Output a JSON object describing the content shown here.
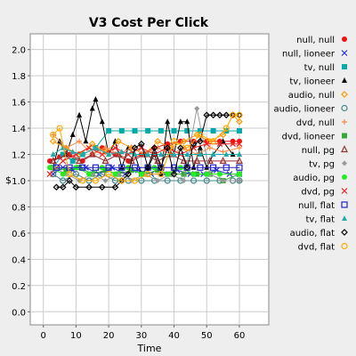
{
  "chart_data": {
    "type": "line",
    "title": "V3 Cost Per Click",
    "xlabel": "Time",
    "ylabel": "$",
    "xlim": [
      -4,
      69
    ],
    "ylim": [
      -0.1,
      2.12
    ],
    "x_ticks": [
      0,
      10,
      20,
      30,
      40,
      50,
      60
    ],
    "y_ticks": [
      0.0,
      0.2,
      0.4,
      0.6,
      0.8,
      1.0,
      1.2,
      1.4,
      1.6,
      1.8,
      2.0
    ],
    "x_tick_labels": [
      "0",
      "10",
      "20",
      "30",
      "40",
      "50",
      "60"
    ],
    "y_tick_labels": [
      "0.0",
      "0.2",
      "0.4",
      "0.6",
      "0.8",
      "1.0",
      "1.2",
      "1.4",
      "1.6",
      "1.8",
      "2.0"
    ],
    "grid": true,
    "legend_position": "right",
    "series": [
      {
        "name": "null, null",
        "color": "#ee1111",
        "marker": "dot",
        "values": [
          [
            2,
            1.15
          ],
          [
            5,
            1.18
          ],
          [
            8,
            1.2
          ],
          [
            12,
            1.15
          ],
          [
            15,
            1.2
          ],
          [
            18,
            1.25
          ],
          [
            22,
            1.2
          ],
          [
            26,
            1.15
          ],
          [
            30,
            1.2
          ],
          [
            34,
            1.25
          ],
          [
            38,
            1.28
          ],
          [
            42,
            1.3
          ],
          [
            46,
            1.3
          ],
          [
            50,
            1.3
          ],
          [
            54,
            1.3
          ],
          [
            58,
            1.3
          ],
          [
            60,
            1.3
          ]
        ]
      },
      {
        "name": "null, lioneer",
        "color": "#2233cc",
        "marker": "x",
        "values": [
          [
            3,
            1.05
          ],
          [
            6,
            1.1
          ],
          [
            9,
            1.08
          ],
          [
            13,
            1.1
          ],
          [
            17,
            1.05
          ],
          [
            21,
            1.1
          ],
          [
            25,
            1.05
          ],
          [
            29,
            1.08
          ],
          [
            33,
            1.05
          ],
          [
            37,
            1.05
          ],
          [
            41,
            1.08
          ],
          [
            45,
            1.05
          ],
          [
            49,
            1.05
          ],
          [
            53,
            1.08
          ],
          [
            57,
            1.05
          ],
          [
            60,
            1.05
          ]
        ]
      },
      {
        "name": "tv, null",
        "color": "#00aaaa",
        "marker": "square",
        "values": [
          [
            3,
            1.1
          ],
          [
            6,
            1.2
          ],
          [
            9,
            1.15
          ],
          [
            12,
            1.2
          ],
          [
            16,
            1.25
          ],
          [
            20,
            1.38
          ],
          [
            24,
            1.38
          ],
          [
            28,
            1.38
          ],
          [
            32,
            1.38
          ],
          [
            36,
            1.38
          ],
          [
            40,
            1.38
          ],
          [
            44,
            1.38
          ],
          [
            48,
            1.38
          ],
          [
            52,
            1.38
          ],
          [
            56,
            1.38
          ],
          [
            60,
            1.38
          ]
        ]
      },
      {
        "name": "tv, lioneer",
        "color": "#000000",
        "marker": "triangle",
        "values": [
          [
            3,
            1.1
          ],
          [
            5,
            1.3
          ],
          [
            7,
            1.2
          ],
          [
            9,
            1.35
          ],
          [
            11,
            1.5
          ],
          [
            13,
            1.3
          ],
          [
            15,
            1.55
          ],
          [
            16,
            1.62
          ],
          [
            18,
            1.45
          ],
          [
            20,
            1.2
          ],
          [
            22,
            1.3
          ],
          [
            24,
            1.1
          ],
          [
            26,
            1.25
          ],
          [
            28,
            1.2
          ],
          [
            30,
            1.05
          ],
          [
            32,
            1.1
          ],
          [
            34,
            1.2
          ],
          [
            36,
            1.05
          ],
          [
            38,
            1.45
          ],
          [
            40,
            1.2
          ],
          [
            42,
            1.45
          ],
          [
            44,
            1.45
          ],
          [
            46,
            1.1
          ],
          [
            48,
            1.25
          ],
          [
            50,
            1.1
          ],
          [
            52,
            1.2
          ],
          [
            55,
            1.3
          ],
          [
            58,
            1.2
          ],
          [
            60,
            1.2
          ]
        ]
      },
      {
        "name": "audio, null",
        "color": "#ff9900",
        "marker": "diamond-open",
        "values": [
          [
            3,
            1.3
          ],
          [
            7,
            1.25
          ],
          [
            11,
            1.2
          ],
          [
            15,
            1.28
          ],
          [
            19,
            1.22
          ],
          [
            23,
            1.3
          ],
          [
            27,
            1.25
          ],
          [
            31,
            1.2
          ],
          [
            35,
            1.3
          ],
          [
            39,
            1.25
          ],
          [
            43,
            1.3
          ],
          [
            47,
            1.35
          ],
          [
            51,
            1.3
          ],
          [
            55,
            1.35
          ],
          [
            58,
            1.5
          ],
          [
            60,
            1.45
          ]
        ]
      },
      {
        "name": "audio, lioneer",
        "color": "#448888",
        "marker": "circle-open",
        "values": [
          [
            3,
            1.05
          ],
          [
            6,
            1.0
          ],
          [
            10,
            1.05
          ],
          [
            14,
            1.0
          ],
          [
            18,
            1.05
          ],
          [
            22,
            1.0
          ],
          [
            26,
            1.0
          ],
          [
            30,
            1.0
          ],
          [
            34,
            1.0
          ],
          [
            38,
            1.0
          ],
          [
            42,
            1.0
          ],
          [
            46,
            1.0
          ],
          [
            50,
            1.0
          ],
          [
            54,
            1.0
          ],
          [
            58,
            1.0
          ],
          [
            60,
            1.0
          ]
        ]
      },
      {
        "name": "dvd, null",
        "color": "#ff8844",
        "marker": "plus",
        "values": [
          [
            3,
            1.35
          ],
          [
            7,
            1.25
          ],
          [
            11,
            1.3
          ],
          [
            15,
            1.2
          ],
          [
            19,
            1.25
          ],
          [
            23,
            1.2
          ],
          [
            27,
            1.25
          ],
          [
            31,
            1.2
          ],
          [
            35,
            1.25
          ],
          [
            39,
            1.2
          ],
          [
            43,
            1.25
          ],
          [
            47,
            1.2
          ],
          [
            51,
            1.25
          ],
          [
            55,
            1.22
          ],
          [
            60,
            1.25
          ]
        ]
      },
      {
        "name": "dvd, lioneer",
        "color": "#33aa33",
        "marker": "square-filled",
        "values": [
          [
            3,
            1.1
          ],
          [
            7,
            1.08
          ],
          [
            11,
            1.1
          ],
          [
            15,
            1.05
          ],
          [
            19,
            1.08
          ],
          [
            23,
            1.05
          ],
          [
            27,
            1.08
          ],
          [
            31,
            1.05
          ],
          [
            35,
            1.08
          ],
          [
            39,
            1.05
          ],
          [
            43,
            1.05
          ],
          [
            47,
            1.05
          ],
          [
            51,
            1.05
          ],
          [
            55,
            1.0
          ],
          [
            60,
            1.05
          ]
        ]
      },
      {
        "name": "null, pg",
        "color": "#993333",
        "marker": "triangle-open",
        "values": [
          [
            3,
            1.15
          ],
          [
            7,
            1.2
          ],
          [
            11,
            1.15
          ],
          [
            15,
            1.2
          ],
          [
            19,
            1.15
          ],
          [
            23,
            1.2
          ],
          [
            27,
            1.15
          ],
          [
            31,
            1.2
          ],
          [
            35,
            1.15
          ],
          [
            39,
            1.2
          ],
          [
            43,
            1.15
          ],
          [
            47,
            1.15
          ],
          [
            51,
            1.15
          ],
          [
            55,
            1.15
          ],
          [
            60,
            1.15
          ]
        ]
      },
      {
        "name": "tv, pg",
        "color": "#999999",
        "marker": "diamond",
        "values": [
          [
            3,
            1.1
          ],
          [
            7,
            1.05
          ],
          [
            11,
            1.0
          ],
          [
            15,
            1.05
          ],
          [
            19,
            1.0
          ],
          [
            23,
            1.05
          ],
          [
            27,
            1.0
          ],
          [
            31,
            1.05
          ],
          [
            35,
            1.0
          ],
          [
            39,
            1.05
          ],
          [
            43,
            1.0
          ],
          [
            47,
            1.55
          ],
          [
            51,
            1.05
          ],
          [
            55,
            1.0
          ],
          [
            60,
            1.0
          ]
        ]
      },
      {
        "name": "audio, pg",
        "color": "#22ee22",
        "marker": "dot",
        "values": [
          [
            2,
            1.1
          ],
          [
            6,
            1.05
          ],
          [
            10,
            1.1
          ],
          [
            14,
            1.05
          ],
          [
            18,
            1.1
          ],
          [
            22,
            1.05
          ],
          [
            26,
            1.1
          ],
          [
            30,
            1.05
          ],
          [
            34,
            1.1
          ],
          [
            38,
            1.05
          ],
          [
            42,
            1.1
          ],
          [
            46,
            1.05
          ],
          [
            50,
            1.05
          ],
          [
            54,
            1.05
          ],
          [
            60,
            1.05
          ]
        ]
      },
      {
        "name": "dvd, pg",
        "color": "#ee2222",
        "marker": "x",
        "values": [
          [
            2,
            1.05
          ],
          [
            6,
            1.15
          ],
          [
            10,
            1.2
          ],
          [
            14,
            1.25
          ],
          [
            18,
            1.2
          ],
          [
            22,
            1.25
          ],
          [
            26,
            1.2
          ],
          [
            30,
            1.25
          ],
          [
            34,
            1.2
          ],
          [
            38,
            1.25
          ],
          [
            42,
            1.2
          ],
          [
            46,
            1.25
          ],
          [
            50,
            1.28
          ],
          [
            54,
            1.28
          ],
          [
            58,
            1.28
          ],
          [
            60,
            1.28
          ]
        ]
      },
      {
        "name": "null, flat",
        "color": "#2222cc",
        "marker": "square-open",
        "values": [
          [
            4,
            1.1
          ],
          [
            8,
            1.1
          ],
          [
            12,
            1.1
          ],
          [
            16,
            1.1
          ],
          [
            20,
            1.1
          ],
          [
            24,
            1.1
          ],
          [
            28,
            1.1
          ],
          [
            32,
            1.1
          ],
          [
            36,
            1.1
          ],
          [
            40,
            1.1
          ],
          [
            44,
            1.1
          ],
          [
            48,
            1.1
          ],
          [
            52,
            1.1
          ],
          [
            56,
            1.1
          ],
          [
            60,
            1.1
          ]
        ]
      },
      {
        "name": "tv, flat",
        "color": "#22aaaa",
        "marker": "triangle",
        "values": [
          [
            3,
            1.2
          ],
          [
            6,
            1.25
          ],
          [
            9,
            1.22
          ],
          [
            12,
            1.2
          ],
          [
            16,
            1.25
          ],
          [
            20,
            1.2
          ],
          [
            24,
            1.22
          ],
          [
            28,
            1.2
          ],
          [
            32,
            1.2
          ],
          [
            36,
            1.2
          ],
          [
            40,
            1.2
          ],
          [
            44,
            1.2
          ],
          [
            48,
            1.2
          ],
          [
            52,
            1.2
          ],
          [
            56,
            1.2
          ],
          [
            60,
            1.2
          ]
        ]
      },
      {
        "name": "audio, flat",
        "color": "#000000",
        "marker": "diamond-open",
        "values": [
          [
            4,
            0.95
          ],
          [
            6,
            0.95
          ],
          [
            8,
            1.0
          ],
          [
            10,
            0.95
          ],
          [
            14,
            0.95
          ],
          [
            18,
            0.95
          ],
          [
            22,
            0.95
          ],
          [
            24,
            1.0
          ],
          [
            26,
            1.05
          ],
          [
            28,
            1.25
          ],
          [
            30,
            1.28
          ],
          [
            32,
            1.1
          ],
          [
            34,
            1.25
          ],
          [
            36,
            1.1
          ],
          [
            38,
            1.25
          ],
          [
            40,
            1.05
          ],
          [
            42,
            1.25
          ],
          [
            44,
            1.1
          ],
          [
            46,
            1.28
          ],
          [
            48,
            1.3
          ],
          [
            50,
            1.5
          ],
          [
            52,
            1.5
          ],
          [
            54,
            1.5
          ],
          [
            56,
            1.5
          ],
          [
            58,
            1.5
          ],
          [
            60,
            1.5
          ]
        ]
      },
      {
        "name": "dvd, flat",
        "color": "#ffaa00",
        "marker": "circle-open",
        "values": [
          [
            3,
            1.35
          ],
          [
            5,
            1.4
          ],
          [
            8,
            1.05
          ],
          [
            12,
            1.0
          ],
          [
            16,
            1.0
          ],
          [
            20,
            1.05
          ],
          [
            24,
            1.0
          ],
          [
            28,
            1.0
          ],
          [
            32,
            1.05
          ],
          [
            36,
            1.05
          ],
          [
            40,
            1.3
          ],
          [
            44,
            1.25
          ],
          [
            48,
            1.35
          ],
          [
            52,
            1.3
          ],
          [
            56,
            1.4
          ],
          [
            58,
            1.5
          ],
          [
            60,
            1.5
          ]
        ]
      }
    ]
  }
}
